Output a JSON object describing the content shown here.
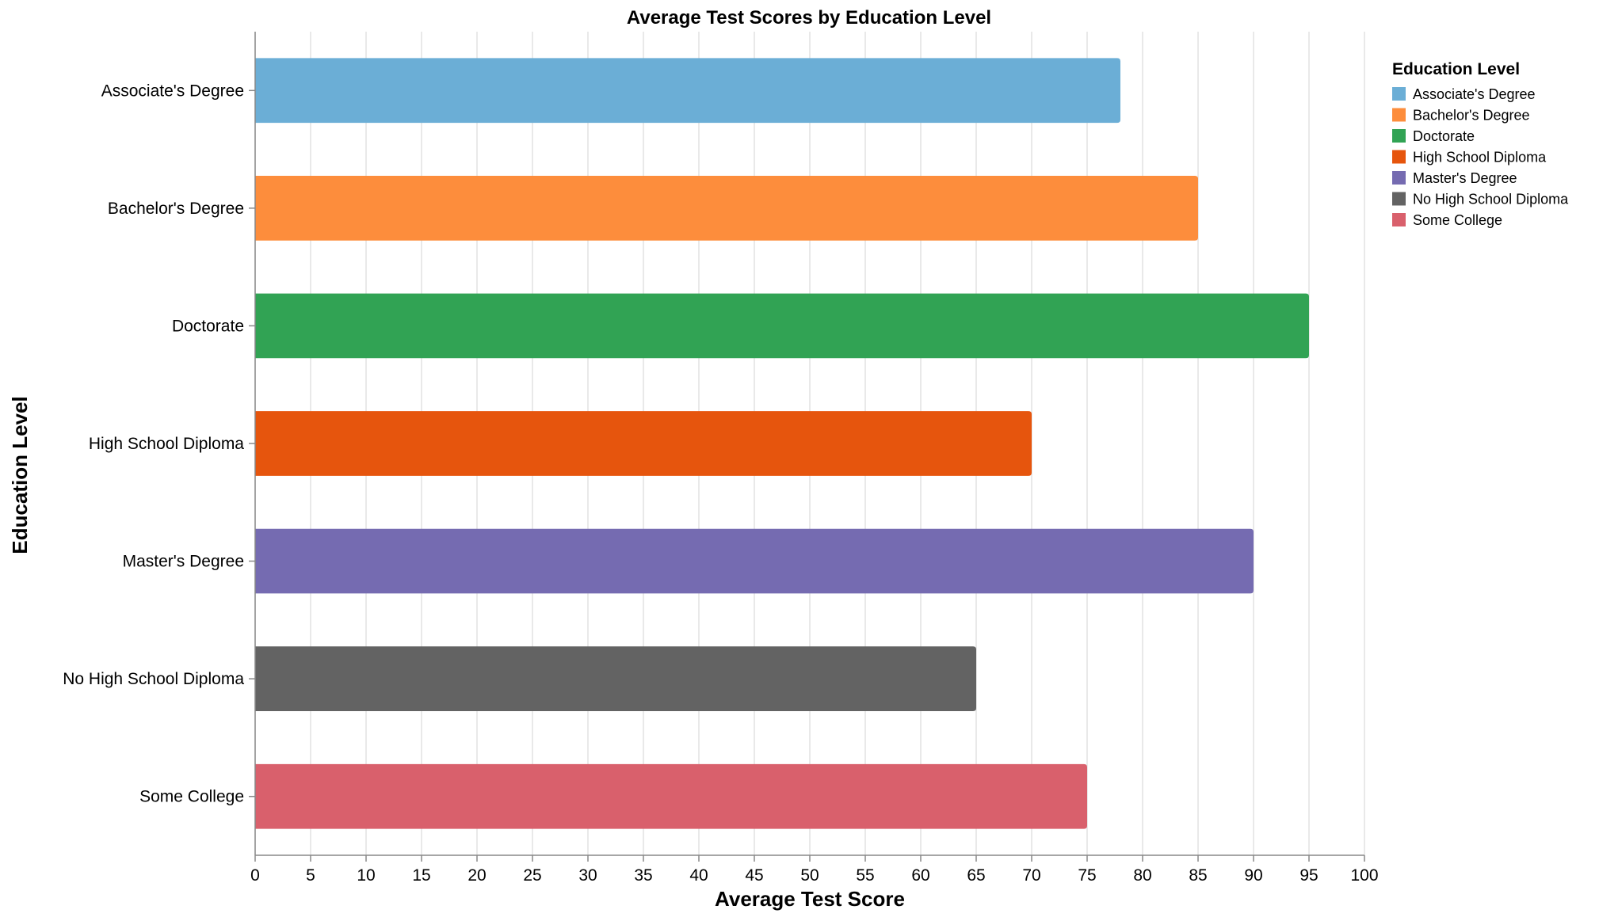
{
  "chart_data": {
    "type": "bar",
    "orientation": "horizontal",
    "title": "Average Test Scores by Education Level",
    "xlabel": "Average Test Score",
    "ylabel": "Education Level",
    "xlim": [
      0,
      100
    ],
    "x_ticks": [
      0,
      5,
      10,
      15,
      20,
      25,
      30,
      35,
      40,
      45,
      50,
      55,
      60,
      65,
      70,
      75,
      80,
      85,
      90,
      95,
      100
    ],
    "grid": true,
    "legend": {
      "title": "Education Level",
      "placement": "top-right"
    },
    "categories": [
      "Associate's Degree",
      "Bachelor's Degree",
      "Doctorate",
      "High School Diploma",
      "Master's Degree",
      "No High School Diploma",
      "Some College"
    ],
    "values": [
      78,
      85,
      95,
      70,
      90,
      65,
      75
    ],
    "colors": [
      "#6baed6",
      "#fd8d3c",
      "#31a354",
      "#e6550d",
      "#756bb1",
      "#636363",
      "#d9606c"
    ]
  }
}
